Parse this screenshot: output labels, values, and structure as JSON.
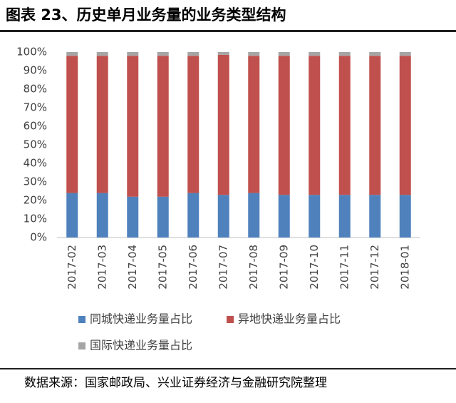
{
  "chart_data": {
    "type": "stacked_bar",
    "title": "图表 23、历史单月业务量的业务类型结构",
    "source": "数据来源：国家邮政局、兴业证券经济与金融研究院整理",
    "categories": [
      "2017-02",
      "2017-03",
      "2017-04",
      "2017-05",
      "2017-06",
      "2017-07",
      "2017-08",
      "2017-09",
      "2017-10",
      "2017-11",
      "2017-12",
      "2018-01"
    ],
    "series": [
      {
        "name": "同城快递业务量占比",
        "color": "#4f81bd",
        "values": [
          24,
          24,
          22,
          22,
          24,
          23,
          24,
          23,
          23,
          23,
          23,
          23
        ]
      },
      {
        "name": "异地快递业务量占比",
        "color": "#c0504d",
        "values": [
          74,
          74,
          76,
          76,
          74,
          75.5,
          74,
          75,
          75,
          75,
          75,
          75
        ]
      },
      {
        "name": "国际快递业务量占比",
        "color": "#a5a5a5",
        "values": [
          2,
          2,
          2,
          2,
          2,
          1.5,
          2,
          2,
          2,
          2,
          2,
          2
        ]
      }
    ],
    "ylim": [
      0,
      100
    ],
    "yticks": [
      {
        "value": 0,
        "label": "0%"
      },
      {
        "value": 10,
        "label": "10%"
      },
      {
        "value": 20,
        "label": "20%"
      },
      {
        "value": 30,
        "label": "30%"
      },
      {
        "value": 40,
        "label": "40%"
      },
      {
        "value": 50,
        "label": "50%"
      },
      {
        "value": 60,
        "label": "60%"
      },
      {
        "value": 70,
        "label": "70%"
      },
      {
        "value": 80,
        "label": "80%"
      },
      {
        "value": 90,
        "label": "90%"
      },
      {
        "value": 100,
        "label": "100%"
      }
    ]
  }
}
